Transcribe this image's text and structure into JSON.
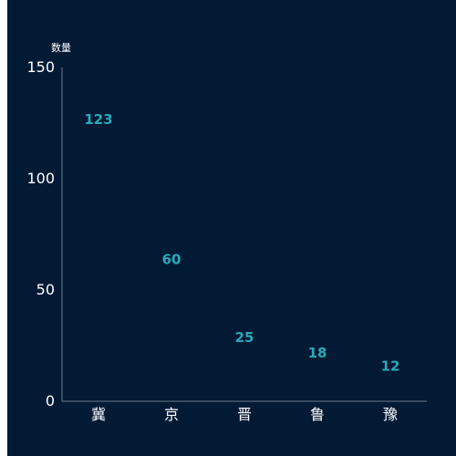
{
  "chart_data": {
    "type": "bar",
    "ylabel": "数量",
    "categories": [
      "冀",
      "京",
      "晋",
      "鲁",
      "豫"
    ],
    "values": [
      123,
      60,
      25,
      18,
      12
    ],
    "yticks": [
      0,
      50,
      100,
      150
    ],
    "ylim": [
      0,
      150
    ],
    "grid": false,
    "colors": {
      "background": "#031a35",
      "data_label": "#2aa9b8",
      "axis": "#6b7a8c",
      "text": "#ffffff"
    }
  }
}
